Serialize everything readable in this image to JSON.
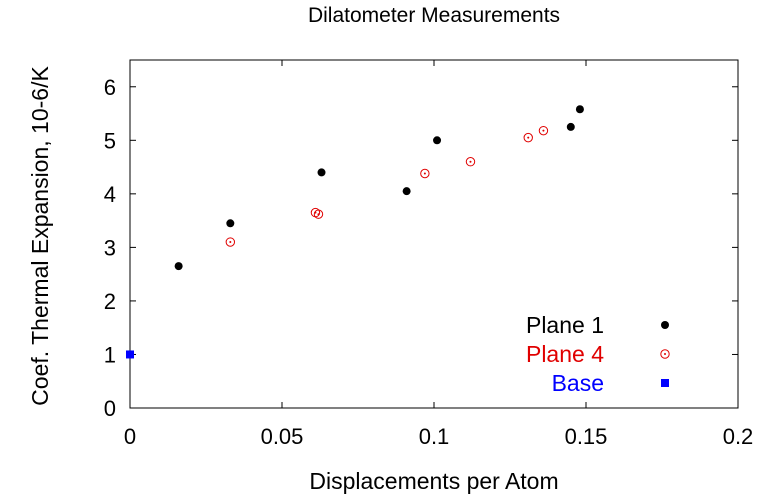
{
  "chart_data": {
    "type": "scatter",
    "title": "Dilatometer Measurements",
    "xlabel": "Displacements per Atom",
    "ylabel": "Coef. Thermal Expansion, 10-6/K",
    "xlim": [
      0,
      0.2
    ],
    "ylim": [
      0,
      6.5
    ],
    "xticks": [
      0,
      0.05,
      0.1,
      0.15,
      0.2
    ],
    "xtick_labels": [
      "0",
      "0.05",
      "0.1",
      "0.15",
      "0.2"
    ],
    "yticks": [
      0,
      1,
      2,
      3,
      4,
      5,
      6
    ],
    "ytick_labels": [
      "0",
      "1",
      "2",
      "3",
      "4",
      "5",
      "6"
    ],
    "grid": false,
    "legend_position": "bottom-right",
    "series": [
      {
        "name": "Plane 1",
        "color": "#000000",
        "marker": "filled-circle",
        "points": [
          [
            0.016,
            2.65
          ],
          [
            0.033,
            3.45
          ],
          [
            0.063,
            4.4
          ],
          [
            0.091,
            4.05
          ],
          [
            0.101,
            5.0
          ],
          [
            0.145,
            5.25
          ],
          [
            0.148,
            5.58
          ]
        ]
      },
      {
        "name": "Plane 4",
        "color": "#e00000",
        "marker": "open-circle-dot",
        "points": [
          [
            0.033,
            3.1
          ],
          [
            0.061,
            3.65
          ],
          [
            0.062,
            3.62
          ],
          [
            0.097,
            4.38
          ],
          [
            0.112,
            4.6
          ],
          [
            0.131,
            5.05
          ],
          [
            0.136,
            5.18
          ]
        ]
      },
      {
        "name": "Base",
        "color": "#0000ff",
        "marker": "filled-square",
        "points": [
          [
            0.0,
            1.0
          ]
        ]
      }
    ]
  }
}
